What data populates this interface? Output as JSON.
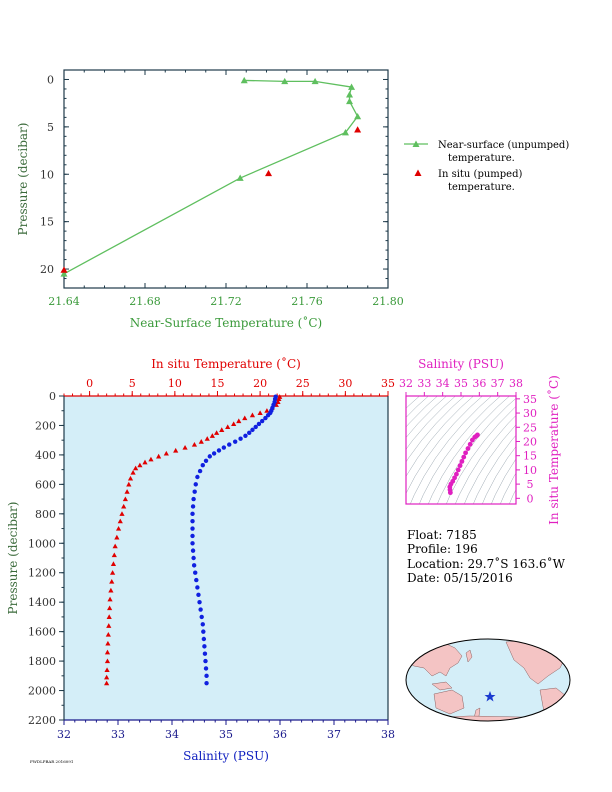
{
  "colors": {
    "green": "#5fbf5f",
    "green_text": "#3a9a3a",
    "red": "#e00000",
    "blue": "#1020e0",
    "navy": "#1a1a8c",
    "magenta": "#e020c0",
    "panel_bg": "#d4eef8",
    "axis_dark": "#1e3a4a"
  },
  "chart_data": [
    {
      "type": "line",
      "id": "near-surface",
      "xlabel": "Near-Surface Temperature (˚C)",
      "ylabel": "Pressure (decibar)",
      "xlim": [
        21.64,
        21.8
      ],
      "ylim": [
        22,
        -1
      ],
      "xticks": [
        "21.64",
        "21.68",
        "21.72",
        "21.76",
        "21.80"
      ],
      "yticks": [
        "0",
        "5",
        "10",
        "15",
        "20"
      ],
      "series": [
        {
          "name": "Near-surface (unpumped) temperature.",
          "marker": "triangle",
          "color": "#5fbf5f",
          "points": [
            [
              21.729,
              0.1
            ],
            [
              21.749,
              0.2
            ],
            [
              21.764,
              0.2
            ],
            [
              21.782,
              0.8
            ],
            [
              21.781,
              1.6
            ],
            [
              21.781,
              2.3
            ],
            [
              21.785,
              3.9
            ],
            [
              21.779,
              5.6
            ],
            [
              21.727,
              10.4
            ],
            [
              21.64,
              20.5
            ]
          ]
        },
        {
          "name": "In situ (pumped) temperature.",
          "marker": "triangle",
          "color": "#e00000",
          "points": [
            [
              21.785,
              5.3
            ],
            [
              21.741,
              9.9
            ],
            [
              21.64,
              20.1
            ]
          ]
        }
      ],
      "legend": [
        {
          "line1": "Near-surface (unpumped)",
          "line2": "temperature."
        },
        {
          "line1": "In situ (pumped)",
          "line2": "temperature."
        }
      ]
    },
    {
      "type": "scatter",
      "id": "profile",
      "ylabel": "Pressure (decibar)",
      "x_top_label": "In situ Temperature (˚C)",
      "x_bottom_label": "Salinity (PSU)",
      "ylim": [
        2200,
        0
      ],
      "xlim_temperature": [
        -3,
        35
      ],
      "xlim_salinity": [
        32,
        38
      ],
      "top_ticks": [
        "0",
        "5",
        "10",
        "15",
        "20",
        "25",
        "30",
        "35"
      ],
      "bottom_ticks": [
        "32",
        "33",
        "34",
        "35",
        "36",
        "37",
        "38"
      ],
      "y_ticks": [
        "0",
        "200",
        "400",
        "600",
        "800",
        "1000",
        "1200",
        "1400",
        "1600",
        "1800",
        "2000",
        "2200"
      ],
      "temperature": [
        [
          22.3,
          5
        ],
        [
          22.2,
          20
        ],
        [
          22.1,
          40
        ],
        [
          21.9,
          60
        ],
        [
          21.4,
          80
        ],
        [
          20.8,
          100
        ],
        [
          20,
          115
        ],
        [
          19.1,
          130
        ],
        [
          18.2,
          150
        ],
        [
          17.5,
          170
        ],
        [
          16.9,
          190
        ],
        [
          16.2,
          210
        ],
        [
          15.5,
          230
        ],
        [
          14.9,
          250
        ],
        [
          14.4,
          270
        ],
        [
          13.8,
          290
        ],
        [
          13.1,
          310
        ],
        [
          12.3,
          330
        ],
        [
          11.2,
          350
        ],
        [
          10.1,
          370
        ],
        [
          9,
          390
        ],
        [
          8.1,
          410
        ],
        [
          7.2,
          430
        ],
        [
          6.5,
          450
        ],
        [
          5.9,
          470
        ],
        [
          5.4,
          490
        ],
        [
          5.1,
          520
        ],
        [
          4.8,
          560
        ],
        [
          4.6,
          600
        ],
        [
          4.4,
          650
        ],
        [
          4.2,
          700
        ],
        [
          4,
          750
        ],
        [
          3.8,
          800
        ],
        [
          3.6,
          850
        ],
        [
          3.4,
          900
        ],
        [
          3.2,
          960
        ],
        [
          3,
          1020
        ],
        [
          2.9,
          1080
        ],
        [
          2.8,
          1140
        ],
        [
          2.7,
          1200
        ],
        [
          2.6,
          1260
        ],
        [
          2.5,
          1320
        ],
        [
          2.4,
          1380
        ],
        [
          2.35,
          1440
        ],
        [
          2.3,
          1500
        ],
        [
          2.25,
          1560
        ],
        [
          2.2,
          1620
        ],
        [
          2.15,
          1680
        ],
        [
          2.1,
          1740
        ],
        [
          2.1,
          1800
        ],
        [
          2.05,
          1860
        ],
        [
          2.0,
          1910
        ],
        [
          2.0,
          1950
        ]
      ],
      "salinity": [
        [
          35.92,
          5
        ],
        [
          35.91,
          20
        ],
        [
          35.9,
          40
        ],
        [
          35.88,
          60
        ],
        [
          35.86,
          80
        ],
        [
          35.84,
          100
        ],
        [
          35.82,
          115
        ],
        [
          35.78,
          130
        ],
        [
          35.73,
          150
        ],
        [
          35.67,
          170
        ],
        [
          35.61,
          190
        ],
        [
          35.55,
          210
        ],
        [
          35.49,
          230
        ],
        [
          35.43,
          250
        ],
        [
          35.36,
          270
        ],
        [
          35.27,
          290
        ],
        [
          35.17,
          310
        ],
        [
          35.06,
          330
        ],
        [
          34.96,
          350
        ],
        [
          34.87,
          370
        ],
        [
          34.78,
          390
        ],
        [
          34.7,
          410
        ],
        [
          34.63,
          440
        ],
        [
          34.57,
          470
        ],
        [
          34.52,
          510
        ],
        [
          34.47,
          550
        ],
        [
          34.44,
          600
        ],
        [
          34.42,
          650
        ],
        [
          34.4,
          700
        ],
        [
          34.39,
          750
        ],
        [
          34.38,
          800
        ],
        [
          34.38,
          850
        ],
        [
          34.38,
          900
        ],
        [
          34.38,
          950
        ],
        [
          34.38,
          1000
        ],
        [
          34.39,
          1050
        ],
        [
          34.4,
          1100
        ],
        [
          34.41,
          1150
        ],
        [
          34.43,
          1200
        ],
        [
          34.45,
          1250
        ],
        [
          34.47,
          1300
        ],
        [
          34.49,
          1350
        ],
        [
          34.51,
          1400
        ],
        [
          34.53,
          1450
        ],
        [
          34.55,
          1500
        ],
        [
          34.57,
          1550
        ],
        [
          34.58,
          1600
        ],
        [
          34.59,
          1650
        ],
        [
          34.6,
          1700
        ],
        [
          34.61,
          1750
        ],
        [
          34.62,
          1800
        ],
        [
          34.63,
          1850
        ],
        [
          34.64,
          1900
        ],
        [
          34.64,
          1950
        ]
      ]
    },
    {
      "type": "scatter",
      "id": "ts-diagram",
      "x_top_label": "Salinity (PSU)",
      "ylabel_right": "In situ Temperature (˚C)",
      "xlim": [
        32,
        38
      ],
      "ylim": [
        -2,
        36
      ],
      "x_ticks": [
        "32",
        "33",
        "34",
        "35",
        "36",
        "37",
        "38"
      ],
      "y_ticks": [
        "0",
        "5",
        "10",
        "15",
        "20",
        "25",
        "30",
        "35"
      ],
      "points": [
        [
          34.42,
          2.0
        ],
        [
          34.4,
          3
        ],
        [
          34.39,
          4
        ],
        [
          34.45,
          5
        ],
        [
          34.55,
          6
        ],
        [
          34.65,
          7.2
        ],
        [
          34.75,
          8.5
        ],
        [
          34.85,
          10
        ],
        [
          34.95,
          11.5
        ],
        [
          35.05,
          13
        ],
        [
          35.15,
          14.5
        ],
        [
          35.25,
          16
        ],
        [
          35.38,
          17.5
        ],
        [
          35.5,
          19
        ],
        [
          35.62,
          20.5
        ],
        [
          35.75,
          21.5
        ],
        [
          35.85,
          22
        ],
        [
          35.9,
          22.3
        ]
      ]
    }
  ],
  "info": {
    "float": "Float:  7185",
    "profile": "Profile:  196",
    "location": "Location:  29.7˚S   163.6˚W",
    "date": "Date:  05/15/2016"
  },
  "footer": "FWDLPBAR 2016091"
}
